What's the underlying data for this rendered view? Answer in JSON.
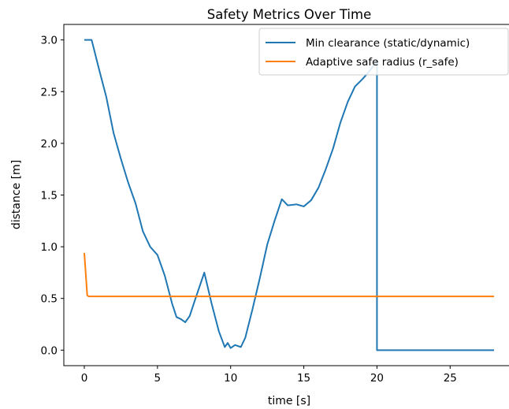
{
  "chart_data": {
    "type": "line",
    "title": "Safety Metrics Over Time",
    "xlabel": "time [s]",
    "ylabel": "distance [m]",
    "xlim": [
      -1.4,
      29.4
    ],
    "ylim": [
      -0.15,
      3.15
    ],
    "xticks": [
      0,
      5,
      10,
      15,
      20,
      25
    ],
    "yticks": [
      0.0,
      0.5,
      1.0,
      1.5,
      2.0,
      2.5,
      3.0
    ],
    "xtick_labels": [
      "0",
      "5",
      "10",
      "15",
      "20",
      "25"
    ],
    "ytick_labels": [
      "0.0",
      "0.5",
      "1.0",
      "1.5",
      "2.0",
      "2.5",
      "3.0"
    ],
    "grid": false,
    "legend_position": "top-right",
    "series": [
      {
        "name": "Min clearance (static/dynamic)",
        "color": "#1f77b4",
        "points": [
          [
            0,
            3.0
          ],
          [
            0.5,
            3.0
          ],
          [
            1.0,
            2.72
          ],
          [
            1.5,
            2.45
          ],
          [
            2.0,
            2.1
          ],
          [
            2.5,
            1.85
          ],
          [
            3.0,
            1.62
          ],
          [
            3.5,
            1.42
          ],
          [
            4.0,
            1.15
          ],
          [
            4.5,
            1.0
          ],
          [
            5.0,
            0.92
          ],
          [
            5.5,
            0.72
          ],
          [
            6.0,
            0.45
          ],
          [
            6.3,
            0.32
          ],
          [
            6.6,
            0.3
          ],
          [
            6.9,
            0.27
          ],
          [
            7.2,
            0.33
          ],
          [
            7.6,
            0.5
          ],
          [
            8.2,
            0.75
          ],
          [
            8.7,
            0.45
          ],
          [
            9.2,
            0.18
          ],
          [
            9.6,
            0.03
          ],
          [
            9.8,
            0.07
          ],
          [
            10.0,
            0.02
          ],
          [
            10.3,
            0.05
          ],
          [
            10.7,
            0.03
          ],
          [
            11.0,
            0.12
          ],
          [
            11.5,
            0.4
          ],
          [
            12.0,
            0.7
          ],
          [
            12.5,
            1.02
          ],
          [
            13.0,
            1.25
          ],
          [
            13.5,
            1.46
          ],
          [
            13.9,
            1.4
          ],
          [
            14.5,
            1.41
          ],
          [
            15.0,
            1.39
          ],
          [
            15.5,
            1.45
          ],
          [
            16.0,
            1.57
          ],
          [
            16.5,
            1.75
          ],
          [
            17.0,
            1.95
          ],
          [
            17.5,
            2.2
          ],
          [
            18.0,
            2.4
          ],
          [
            18.5,
            2.55
          ],
          [
            19.0,
            2.62
          ],
          [
            19.5,
            2.7
          ],
          [
            20.0,
            2.8
          ],
          [
            20.0,
            0.0
          ],
          [
            28.0,
            0.0
          ]
        ]
      },
      {
        "name": "Adaptive safe radius (r_safe)",
        "color": "#ff7f0e",
        "points": [
          [
            0.0,
            0.94
          ],
          [
            0.2,
            0.53
          ],
          [
            0.3,
            0.52
          ],
          [
            28.0,
            0.52
          ]
        ]
      }
    ]
  }
}
